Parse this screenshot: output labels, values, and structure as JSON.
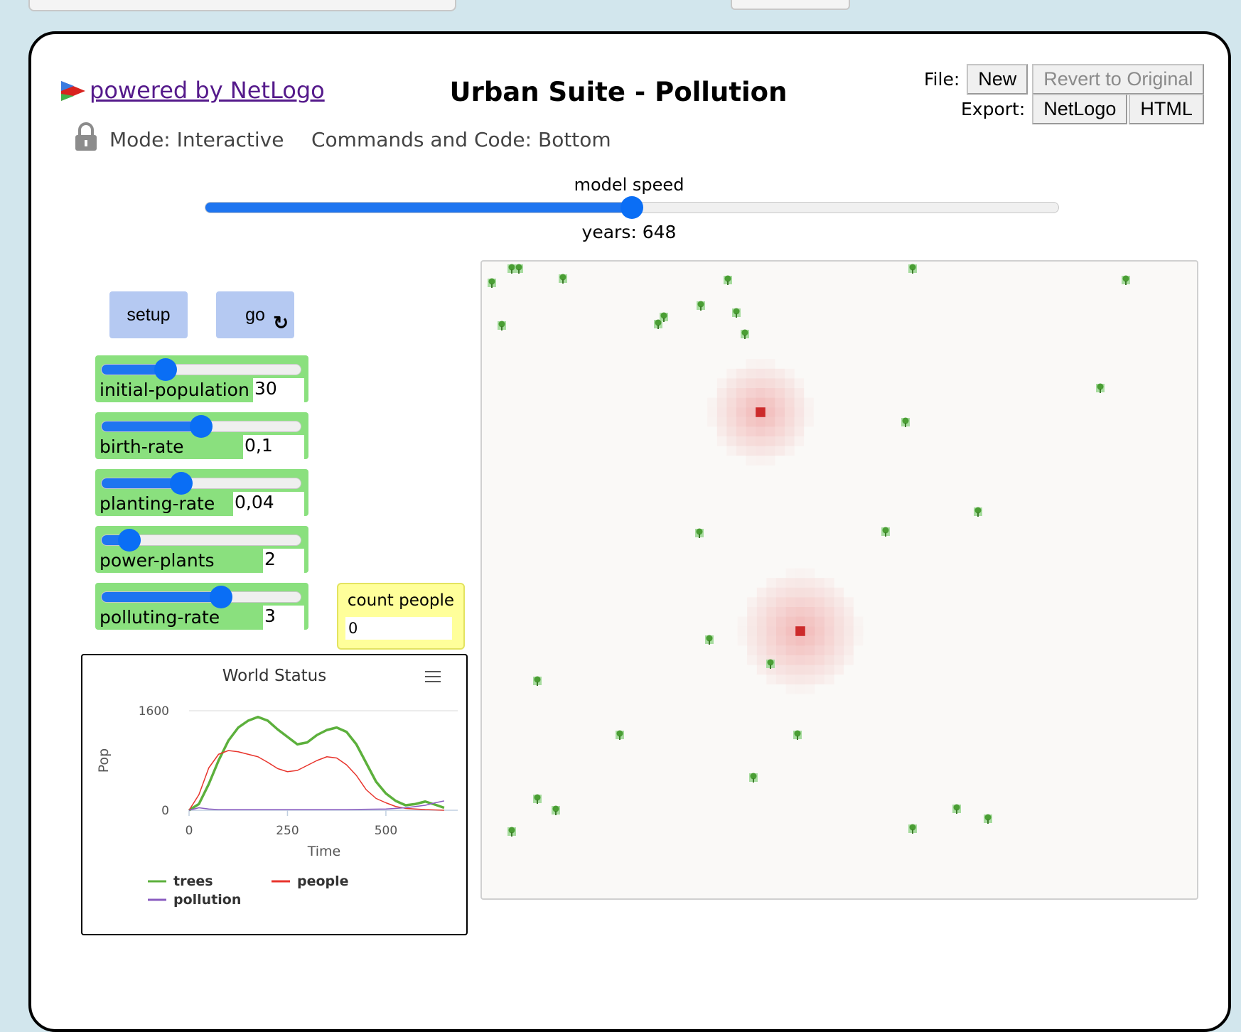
{
  "header": {
    "powered_by": "powered by NetLogo",
    "title": "Urban Suite - Pollution",
    "file_label": "File:",
    "new_label": "New",
    "revert_label": "Revert to Original",
    "export_label": "Export:",
    "netlogo_label": "NetLogo",
    "html_label": "HTML",
    "mode": "Mode: Interactive",
    "commands": "Commands and Code: Bottom"
  },
  "speed": {
    "label": "model speed",
    "value_fraction": 0.5,
    "ticks_text": "years: 648"
  },
  "buttons": {
    "setup": "setup",
    "go": "go",
    "go_icon": "forever-arrow-icon"
  },
  "sliders": [
    {
      "name": "initial-population",
      "value": "30",
      "fraction": 0.32
    },
    {
      "name": "birth-rate",
      "value": "0,1",
      "fraction": 0.5
    },
    {
      "name": "planting-rate",
      "value": "0,04",
      "fraction": 0.4
    },
    {
      "name": "power-plants",
      "value": "2",
      "fraction": 0.14
    },
    {
      "name": "polluting-rate",
      "value": "3",
      "fraction": 0.6
    }
  ],
  "monitor": {
    "label": "count people",
    "value": "0"
  },
  "plot": {
    "title": "World Status",
    "menu_icon": "hamburger-menu-icon"
  },
  "colors": {
    "trees": "#5cb03c",
    "people": "#e8342c",
    "pollution": "#8a5cc0",
    "slider_bg": "#8ae07e",
    "button_bg": "#b5c9f2",
    "monitor_bg": "#ffff9a",
    "accent": "#0a6ef5"
  },
  "chart_data": {
    "type": "line",
    "title": "World Status",
    "xlabel": "Time",
    "ylabel": "Pop",
    "xlim": [
      0,
      650
    ],
    "ylim": [
      0,
      1600
    ],
    "x_ticks": [
      "0",
      "250",
      "500"
    ],
    "y_ticks": [
      "0",
      "1600"
    ],
    "legend": "bottom",
    "series": [
      {
        "name": "trees",
        "x": [
          0,
          25,
          50,
          75,
          100,
          125,
          150,
          175,
          200,
          225,
          250,
          275,
          300,
          325,
          350,
          375,
          400,
          425,
          450,
          475,
          500,
          525,
          550,
          575,
          600,
          625,
          648
        ],
        "values": [
          0,
          100,
          420,
          800,
          1120,
          1330,
          1440,
          1500,
          1440,
          1300,
          1180,
          1060,
          1090,
          1210,
          1290,
          1330,
          1260,
          1060,
          760,
          460,
          270,
          150,
          80,
          100,
          140,
          90,
          40
        ]
      },
      {
        "name": "people",
        "x": [
          0,
          25,
          50,
          75,
          100,
          125,
          150,
          175,
          200,
          225,
          250,
          275,
          300,
          325,
          350,
          375,
          400,
          425,
          450,
          475,
          500,
          525,
          550,
          575,
          600,
          625,
          648
        ],
        "values": [
          0,
          250,
          680,
          900,
          960,
          940,
          900,
          860,
          770,
          670,
          620,
          640,
          720,
          800,
          860,
          840,
          730,
          560,
          330,
          190,
          120,
          60,
          30,
          20,
          10,
          5,
          0
        ]
      },
      {
        "name": "pollution",
        "x": [
          0,
          25,
          50,
          75,
          100,
          200,
          300,
          400,
          500,
          550,
          600,
          625,
          648
        ],
        "values": [
          0,
          40,
          20,
          10,
          10,
          10,
          10,
          10,
          20,
          40,
          80,
          120,
          150
        ]
      }
    ]
  }
}
